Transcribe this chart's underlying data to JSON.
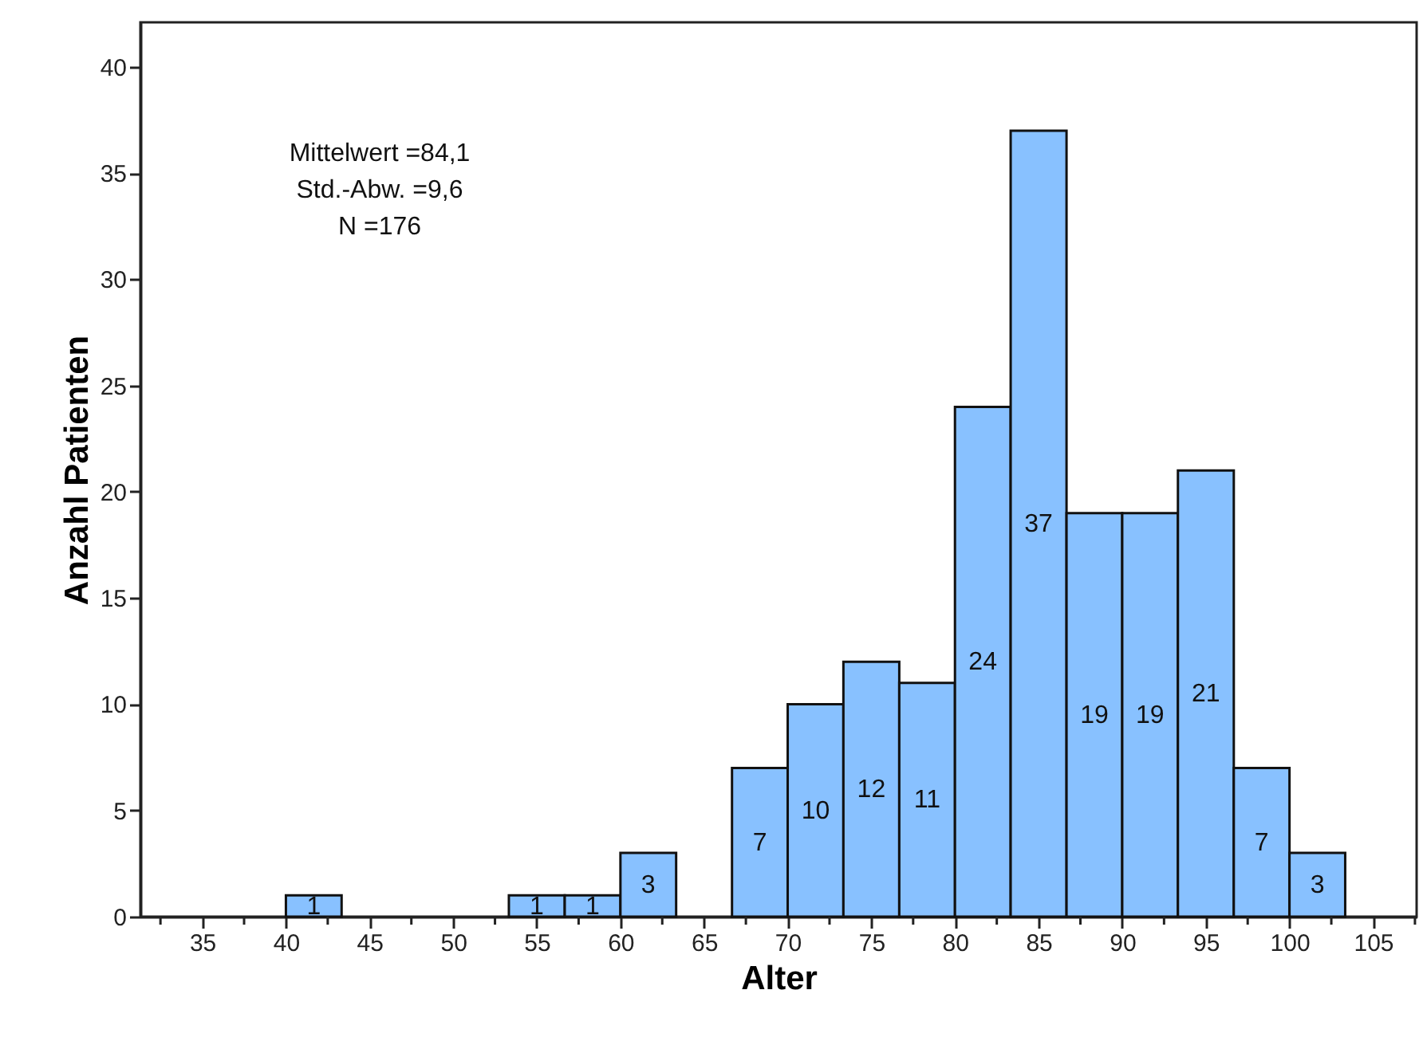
{
  "chart_data": {
    "type": "histogram",
    "xlabel": "Alter",
    "ylabel": "Anzahl Patienten",
    "bins": [
      40,
      43.33,
      46.67,
      50,
      53.33,
      56.67,
      60,
      63.33,
      66.67,
      70,
      73.33,
      76.67,
      80,
      83.33,
      86.67,
      90,
      93.33,
      96.67,
      100,
      103.33
    ],
    "values": [
      1,
      0,
      0,
      0,
      1,
      1,
      3,
      0,
      7,
      10,
      12,
      11,
      24,
      37,
      19,
      19,
      21,
      7,
      3
    ],
    "value_labels": [
      "1",
      null,
      null,
      null,
      "1",
      "1",
      "3",
      null,
      "7",
      "10",
      "12",
      "11",
      "24",
      "37",
      "19",
      "19",
      "21",
      "7",
      "3"
    ],
    "color": "#88c1ff",
    "xlim": [
      31.3,
      107.6
    ],
    "xticks": [
      {
        "value": 32.5,
        "label": null
      },
      35,
      {
        "value": 37.5,
        "label": null
      },
      40,
      {
        "value": 42.5,
        "label": null
      },
      45,
      {
        "value": 47.5,
        "label": null
      },
      50,
      {
        "value": 52.5,
        "label": null
      },
      55,
      {
        "value": 57.5,
        "label": null
      },
      60,
      {
        "value": 62.5,
        "label": null
      },
      65,
      {
        "value": 67.5,
        "label": null
      },
      70,
      {
        "value": 72.5,
        "label": null
      },
      75,
      {
        "value": 77.5,
        "label": null
      },
      80,
      {
        "value": 82.5,
        "label": null
      },
      85,
      {
        "value": 87.5,
        "label": null
      },
      90,
      {
        "value": 92.5,
        "label": null
      },
      95,
      {
        "value": 97.5,
        "label": null
      },
      100,
      {
        "value": 102.5,
        "label": null
      },
      105,
      {
        "value": 107.5,
        "label": null
      }
    ],
    "ylim": [
      0,
      42.1
    ],
    "yticks": [
      0,
      5,
      10,
      15,
      20,
      25,
      30,
      35,
      40
    ],
    "grid": false,
    "annotations": [
      "Mittelwert =84,1",
      "Std.-Abw. =9,6",
      "N =176"
    ]
  }
}
